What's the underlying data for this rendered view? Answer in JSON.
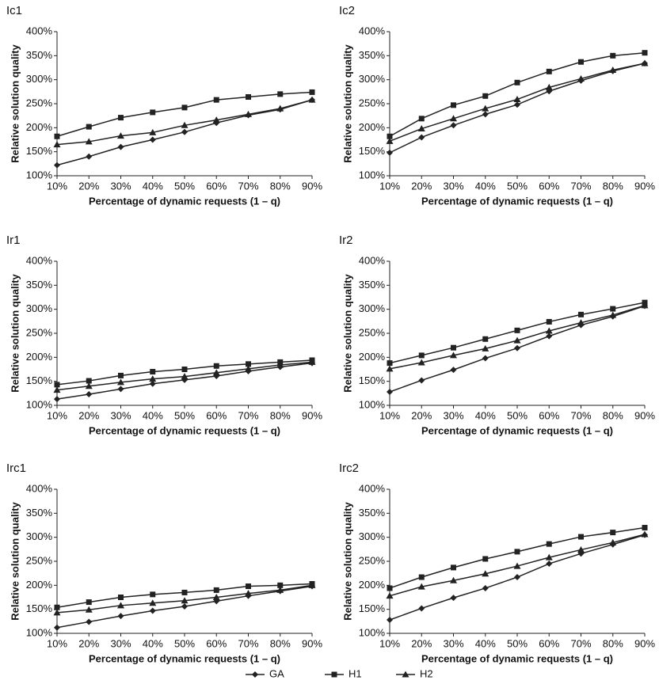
{
  "chart_data": [
    {
      "type": "line",
      "title": "Ic1",
      "x_label": "Percentage of dynamic requests (1 – q)",
      "y_label": "Relative solution quality",
      "categories": [
        "10%",
        "20%",
        "30%",
        "40%",
        "50%",
        "60%",
        "70%",
        "80%",
        "90%"
      ],
      "ylim": [
        100,
        400
      ],
      "yticks": [
        {
          "value": 100,
          "label": "100%"
        },
        {
          "value": 150,
          "label": "150%"
        },
        {
          "value": 200,
          "label": "200%"
        },
        {
          "value": 250,
          "label": "250%"
        },
        {
          "value": 300,
          "label": "300%"
        },
        {
          "value": 350,
          "label": "350%"
        },
        {
          "value": 400,
          "label": "400%"
        }
      ],
      "series": [
        {
          "name": "GA",
          "color": "#222222",
          "marker": "diamond",
          "values": [
            122,
            140,
            160,
            175,
            191,
            210,
            226,
            238,
            258
          ]
        },
        {
          "name": "H1",
          "color": "#222222",
          "marker": "square",
          "values": [
            182,
            202,
            221,
            232,
            242,
            258,
            264,
            270,
            274
          ]
        },
        {
          "name": "H2",
          "color": "#222222",
          "marker": "triangle",
          "values": [
            165,
            171,
            183,
            190,
            205,
            216,
            228,
            240,
            258
          ]
        }
      ]
    },
    {
      "type": "line",
      "title": "Ic2",
      "x_label": "Percentage of dynamic requests (1 – q)",
      "y_label": "Relative solution quality",
      "categories": [
        "10%",
        "20%",
        "30%",
        "40%",
        "50%",
        "60%",
        "70%",
        "80%",
        "90%"
      ],
      "ylim": [
        100,
        400
      ],
      "yticks": [
        {
          "value": 100,
          "label": "100%"
        },
        {
          "value": 150,
          "label": "150%"
        },
        {
          "value": 200,
          "label": "200%"
        },
        {
          "value": 250,
          "label": "250%"
        },
        {
          "value": 300,
          "label": "300%"
        },
        {
          "value": 350,
          "label": "350%"
        },
        {
          "value": 400,
          "label": "400%"
        }
      ],
      "series": [
        {
          "name": "GA",
          "color": "#222222",
          "marker": "diamond",
          "values": [
            148,
            180,
            205,
            228,
            248,
            276,
            298,
            318,
            334
          ]
        },
        {
          "name": "H1",
          "color": "#222222",
          "marker": "square",
          "values": [
            182,
            219,
            247,
            266,
            294,
            317,
            337,
            350,
            356
          ]
        },
        {
          "name": "H2",
          "color": "#222222",
          "marker": "triangle",
          "values": [
            172,
            198,
            219,
            240,
            259,
            284,
            302,
            320,
            334
          ]
        }
      ]
    },
    {
      "type": "line",
      "title": "Ir1",
      "x_label": "Percentage of dynamic requests (1 – q)",
      "y_label": "Relative solution quality",
      "categories": [
        "10%",
        "20%",
        "30%",
        "40%",
        "50%",
        "60%",
        "70%",
        "80%",
        "90%"
      ],
      "ylim": [
        100,
        400
      ],
      "yticks": [
        {
          "value": 100,
          "label": "100%"
        },
        {
          "value": 150,
          "label": "150%"
        },
        {
          "value": 200,
          "label": "200%"
        },
        {
          "value": 250,
          "label": "250%"
        },
        {
          "value": 300,
          "label": "300%"
        },
        {
          "value": 350,
          "label": "350%"
        },
        {
          "value": 400,
          "label": "400%"
        }
      ],
      "series": [
        {
          "name": "GA",
          "color": "#222222",
          "marker": "diamond",
          "values": [
            113,
            123,
            134,
            145,
            153,
            161,
            171,
            180,
            188
          ]
        },
        {
          "name": "H1",
          "color": "#222222",
          "marker": "square",
          "values": [
            143,
            151,
            162,
            170,
            175,
            182,
            186,
            190,
            194
          ]
        },
        {
          "name": "H2",
          "color": "#222222",
          "marker": "triangle",
          "values": [
            132,
            140,
            148,
            155,
            160,
            168,
            176,
            184,
            190
          ]
        }
      ]
    },
    {
      "type": "line",
      "title": "Ir2",
      "x_label": "Percentage of dynamic requests (1 – q)",
      "y_label": "Relative solution quality",
      "categories": [
        "10%",
        "20%",
        "30%",
        "40%",
        "50%",
        "60%",
        "70%",
        "80%",
        "90%"
      ],
      "ylim": [
        100,
        400
      ],
      "yticks": [
        {
          "value": 100,
          "label": "100%"
        },
        {
          "value": 150,
          "label": "150%"
        },
        {
          "value": 200,
          "label": "200%"
        },
        {
          "value": 250,
          "label": "250%"
        },
        {
          "value": 300,
          "label": "300%"
        },
        {
          "value": 350,
          "label": "350%"
        },
        {
          "value": 400,
          "label": "400%"
        }
      ],
      "series": [
        {
          "name": "GA",
          "color": "#222222",
          "marker": "diamond",
          "values": [
            128,
            152,
            174,
            198,
            219,
            244,
            267,
            285,
            307
          ]
        },
        {
          "name": "H1",
          "color": "#222222",
          "marker": "square",
          "values": [
            188,
            204,
            220,
            238,
            256,
            274,
            289,
            301,
            314
          ]
        },
        {
          "name": "H2",
          "color": "#222222",
          "marker": "triangle",
          "values": [
            176,
            189,
            204,
            218,
            235,
            255,
            272,
            288,
            308
          ]
        }
      ]
    },
    {
      "type": "line",
      "title": "Irc1",
      "x_label": "Percentage of dynamic requests (1 – q)",
      "y_label": "Relative solution quality",
      "categories": [
        "10%",
        "20%",
        "30%",
        "40%",
        "50%",
        "60%",
        "70%",
        "80%",
        "90%"
      ],
      "ylim": [
        100,
        400
      ],
      "yticks": [
        {
          "value": 100,
          "label": "100%"
        },
        {
          "value": 150,
          "label": "150%"
        },
        {
          "value": 200,
          "label": "200%"
        },
        {
          "value": 250,
          "label": "250%"
        },
        {
          "value": 300,
          "label": "300%"
        },
        {
          "value": 350,
          "label": "350%"
        },
        {
          "value": 400,
          "label": "400%"
        }
      ],
      "series": [
        {
          "name": "GA",
          "color": "#222222",
          "marker": "diamond",
          "values": [
            112,
            124,
            136,
            147,
            156,
            167,
            178,
            188,
            198
          ]
        },
        {
          "name": "H1",
          "color": "#222222",
          "marker": "square",
          "values": [
            154,
            165,
            175,
            181,
            185,
            190,
            198,
            200,
            203
          ]
        },
        {
          "name": "H2",
          "color": "#222222",
          "marker": "triangle",
          "values": [
            143,
            149,
            158,
            163,
            168,
            175,
            183,
            190,
            200
          ]
        }
      ]
    },
    {
      "type": "line",
      "title": "Irc2",
      "x_label": "Percentage of dynamic requests (1 – q)",
      "y_label": "Relative solution quality",
      "categories": [
        "10%",
        "20%",
        "30%",
        "40%",
        "50%",
        "60%",
        "70%",
        "80%",
        "90%"
      ],
      "ylim": [
        100,
        400
      ],
      "yticks": [
        {
          "value": 100,
          "label": "100%"
        },
        {
          "value": 150,
          "label": "150%"
        },
        {
          "value": 200,
          "label": "200%"
        },
        {
          "value": 250,
          "label": "250%"
        },
        {
          "value": 300,
          "label": "300%"
        },
        {
          "value": 350,
          "label": "350%"
        },
        {
          "value": 400,
          "label": "400%"
        }
      ],
      "series": [
        {
          "name": "GA",
          "color": "#222222",
          "marker": "diamond",
          "values": [
            128,
            152,
            174,
            194,
            217,
            245,
            266,
            285,
            305
          ]
        },
        {
          "name": "H1",
          "color": "#222222",
          "marker": "square",
          "values": [
            194,
            217,
            237,
            255,
            270,
            286,
            301,
            310,
            320
          ]
        },
        {
          "name": "H2",
          "color": "#222222",
          "marker": "triangle",
          "values": [
            178,
            197,
            210,
            224,
            240,
            258,
            274,
            289,
            306
          ]
        }
      ]
    }
  ]
}
